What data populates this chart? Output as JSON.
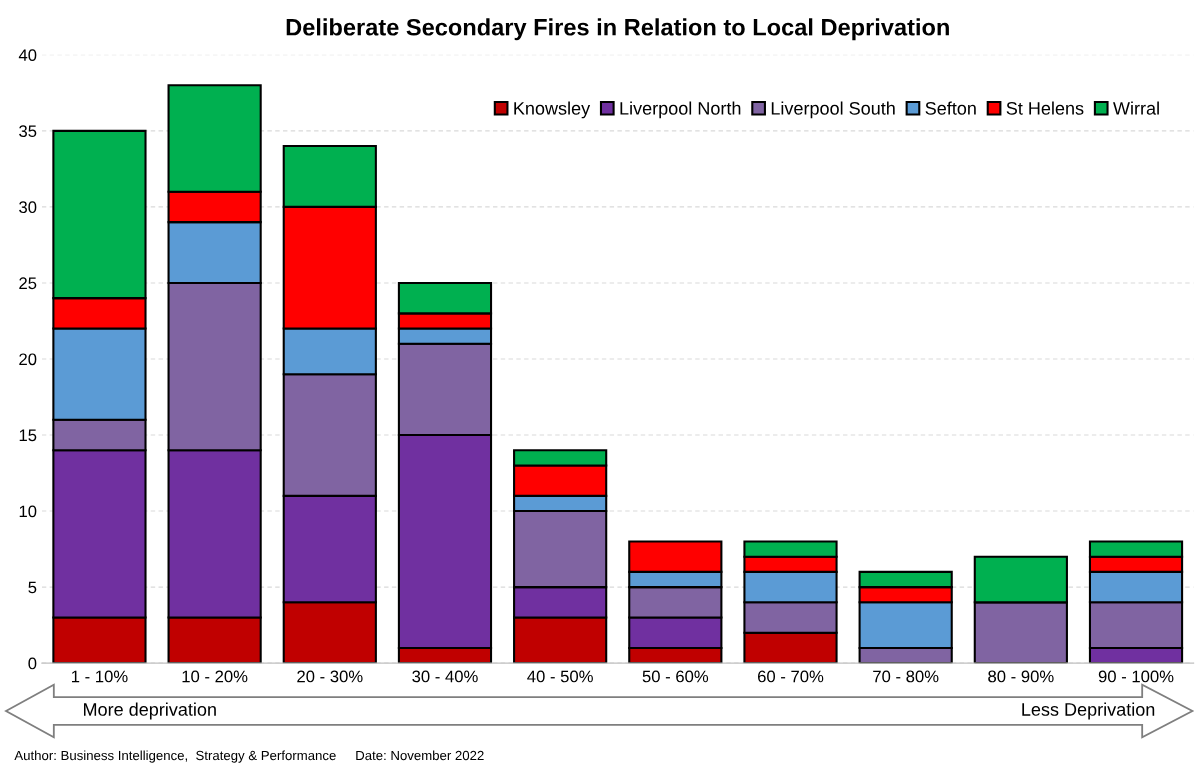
{
  "chart_data": {
    "type": "bar",
    "title": "Deliberate Secondary Fires in Relation to Local Deprivation",
    "stacked": true,
    "categories": [
      "1 - 10%",
      "10 - 20%",
      "20 - 30%",
      "30 - 40%",
      "40 - 50%",
      "50 - 60%",
      "60 - 70%",
      "70 - 80%",
      "80 - 90%",
      "90 - 100%"
    ],
    "series": [
      {
        "name": "Knowsley",
        "color": "#c00000",
        "values": [
          3,
          3,
          4,
          1,
          3,
          1,
          2,
          0,
          0,
          0
        ]
      },
      {
        "name": "Liverpool North",
        "color": "#7030a0",
        "values": [
          11,
          11,
          7,
          14,
          2,
          2,
          0,
          0,
          0,
          1
        ]
      },
      {
        "name": "Liverpool South",
        "color": "#8064a2",
        "values": [
          2,
          11,
          8,
          6,
          5,
          2,
          2,
          1,
          4,
          3
        ]
      },
      {
        "name": "Sefton",
        "color": "#5b9bd5",
        "values": [
          6,
          4,
          3,
          1,
          1,
          1,
          2,
          3,
          0,
          2
        ]
      },
      {
        "name": "St Helens",
        "color": "#ff0000",
        "values": [
          2,
          2,
          8,
          1,
          2,
          2,
          1,
          1,
          0,
          1
        ]
      },
      {
        "name": "Wirral",
        "color": "#00b050",
        "values": [
          11,
          7,
          4,
          2,
          1,
          null,
          1,
          1,
          3,
          1
        ]
      }
    ],
    "ylim": [
      0,
      40
    ],
    "yticks": [
      0,
      5,
      10,
      15,
      20,
      25,
      30,
      35,
      40
    ],
    "grid": "y",
    "legend": "top right",
    "annotations": [
      "More deprivation",
      "Less Deprivation",
      "Author: Business Intelligence,  Strategy & Performance",
      "Date: November 2022"
    ]
  }
}
